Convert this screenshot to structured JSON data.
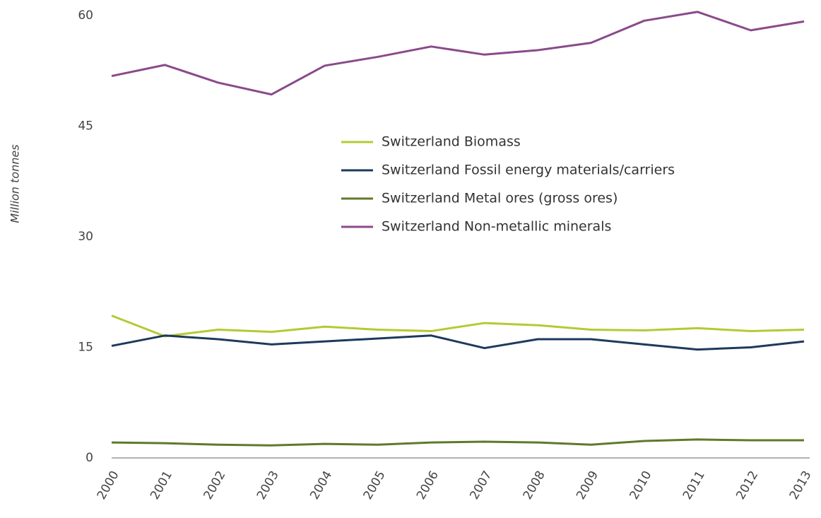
{
  "chart_data": {
    "type": "line",
    "y_label": "Million tonnes",
    "categories": [
      "2000",
      "2001",
      "2002",
      "2003",
      "2004",
      "2005",
      "2006",
      "2007",
      "2008",
      "2009",
      "2010",
      "2011",
      "2012",
      "2013"
    ],
    "series": [
      {
        "name": "Switzerland Biomass",
        "color": "#b6c934",
        "values": [
          19.3,
          16.5,
          17.4,
          17.1,
          17.8,
          17.4,
          17.2,
          18.3,
          18.0,
          17.4,
          17.3,
          17.6,
          17.2,
          17.4
        ]
      },
      {
        "name": "Switzerland Fossil energy materials/carriers",
        "color": "#1c3a5c",
        "values": [
          15.2,
          16.6,
          16.1,
          15.4,
          15.8,
          16.2,
          16.6,
          14.9,
          16.1,
          16.1,
          15.4,
          14.7,
          15.0,
          15.8
        ]
      },
      {
        "name": "Switzerland Metal ores (gross ores)",
        "color": "#5e7a2a",
        "values": [
          2.1,
          2.0,
          1.8,
          1.7,
          1.9,
          1.8,
          2.1,
          2.2,
          2.1,
          1.8,
          2.3,
          2.5,
          2.4,
          2.4
        ]
      },
      {
        "name": "Switzerland Non-metallic minerals",
        "color": "#8a4a8a",
        "values": [
          51.8,
          53.3,
          50.9,
          49.3,
          53.2,
          54.4,
          55.8,
          54.7,
          55.3,
          56.3,
          59.3,
          60.5,
          58.0,
          59.2
        ]
      }
    ],
    "ylim": [
      0,
      60
    ],
    "yticks": [
      0,
      15,
      30,
      45,
      60
    ],
    "grid": false
  }
}
